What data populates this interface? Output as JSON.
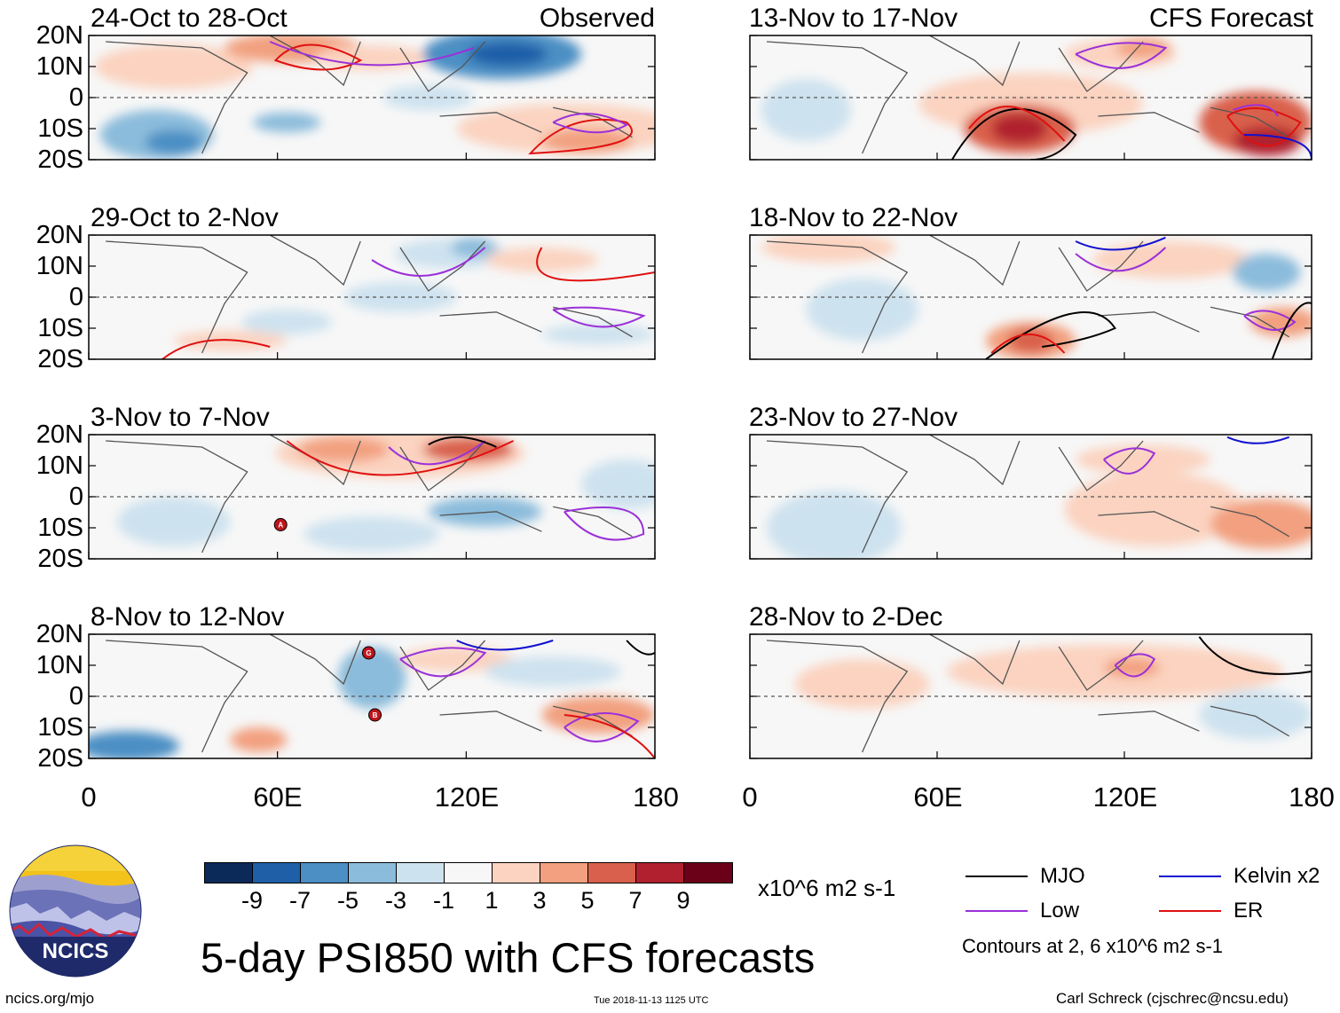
{
  "header": {
    "observed_label": "Observed",
    "forecast_label": "CFS Forecast"
  },
  "panels": [
    {
      "title": "24-Oct to 28-Oct"
    },
    {
      "title": "29-Oct to 2-Nov"
    },
    {
      "title": "3-Nov to 7-Nov"
    },
    {
      "title": "8-Nov to 12-Nov"
    },
    {
      "title": "13-Nov to 17-Nov"
    },
    {
      "title": "18-Nov to 22-Nov"
    },
    {
      "title": "23-Nov to 27-Nov"
    },
    {
      "title": "28-Nov to 2-Dec"
    }
  ],
  "lat_labels": [
    "20N",
    "10N",
    "0",
    "10S",
    "20S"
  ],
  "lon_labels": [
    "0",
    "60E",
    "120E",
    "180"
  ],
  "colorbar": {
    "colors": [
      "#0b2a5a",
      "#1f5fa8",
      "#4b8fc4",
      "#8bbcdb",
      "#cde2ef",
      "#f7f7f7",
      "#fbd3c0",
      "#f2a07f",
      "#d9604c",
      "#b0202e",
      "#6b0019"
    ],
    "tick_labels": [
      "-9",
      "-7",
      "-5",
      "-3",
      "-1",
      "1",
      "3",
      "5",
      "7",
      "9"
    ],
    "units": "x10^6 m2 s-1"
  },
  "legend": {
    "items": [
      {
        "label": "MJO",
        "color": "#000000"
      },
      {
        "label": "Kelvin x2",
        "color": "#1010d0"
      },
      {
        "label": "Low",
        "color": "#9b30d9"
      },
      {
        "label": "ER",
        "color": "#e01010"
      }
    ],
    "contour_note": "Contours at 2, 6 x10^6 m2 s-1"
  },
  "title": "5-day PSI850 with CFS forecasts",
  "logo_text": "NCICS",
  "footer": {
    "url": "ncics.org/mjo",
    "timestamp": "Tue 2018-11-13 1125 UTC",
    "credit": "Carl Schreck (cjschrec@ncsu.edu)"
  },
  "storm_markers": [
    {
      "panel": 2,
      "label": "A",
      "lon": 61,
      "lat": -9
    },
    {
      "panel": 3,
      "label": "G",
      "lon": 89,
      "lat": 14
    },
    {
      "panel": 3,
      "label": "B",
      "lon": 91,
      "lat": -6
    }
  ]
}
